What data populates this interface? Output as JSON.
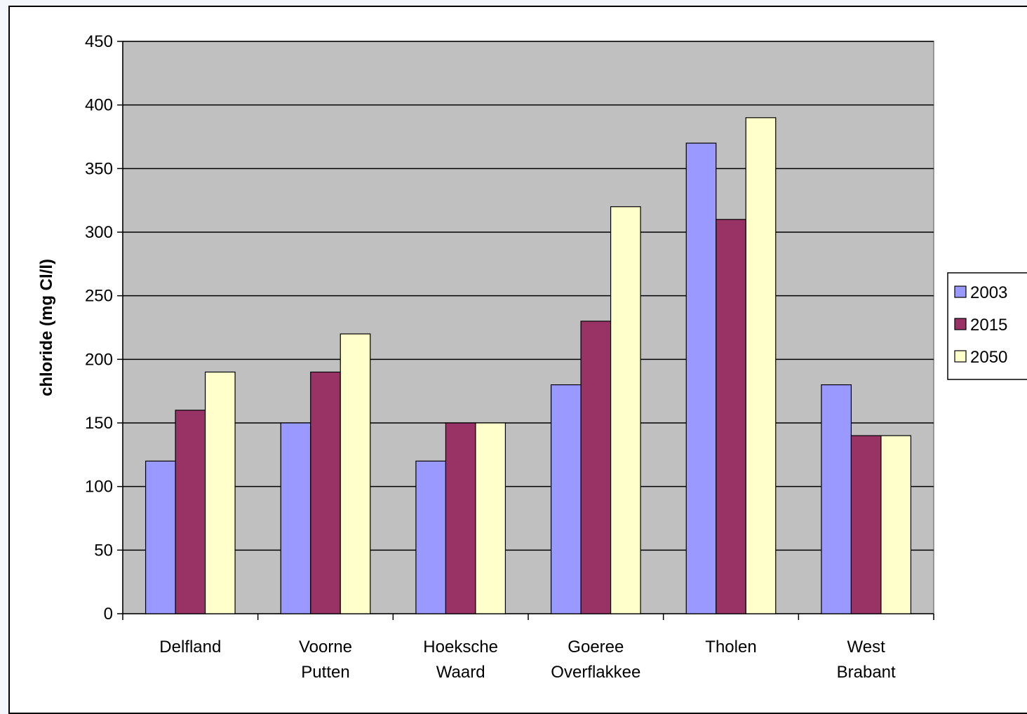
{
  "chart_data": {
    "type": "bar",
    "title": "",
    "xlabel": "",
    "ylabel": "chloride (mg Cl/l)",
    "ylim": [
      0,
      450
    ],
    "yticks": [
      0,
      50,
      100,
      150,
      200,
      250,
      300,
      350,
      400,
      450
    ],
    "categories": [
      [
        "Delfland"
      ],
      [
        "Voorne",
        "Putten"
      ],
      [
        "Hoeksche",
        "Waard"
      ],
      [
        "Goeree",
        "Overflakkee"
      ],
      [
        "Tholen"
      ],
      [
        "West",
        "Brabant"
      ]
    ],
    "series": [
      {
        "name": "2003",
        "color": "#9999ff",
        "values": [
          120,
          150,
          120,
          180,
          370,
          180
        ]
      },
      {
        "name": "2015",
        "color": "#993366",
        "values": [
          160,
          190,
          150,
          230,
          310,
          140
        ]
      },
      {
        "name": "2050",
        "color": "#ffffcc",
        "values": [
          190,
          220,
          150,
          320,
          390,
          140
        ]
      }
    ],
    "plot_background": "#c0c0c0",
    "grid": true,
    "legend_position": "right"
  }
}
